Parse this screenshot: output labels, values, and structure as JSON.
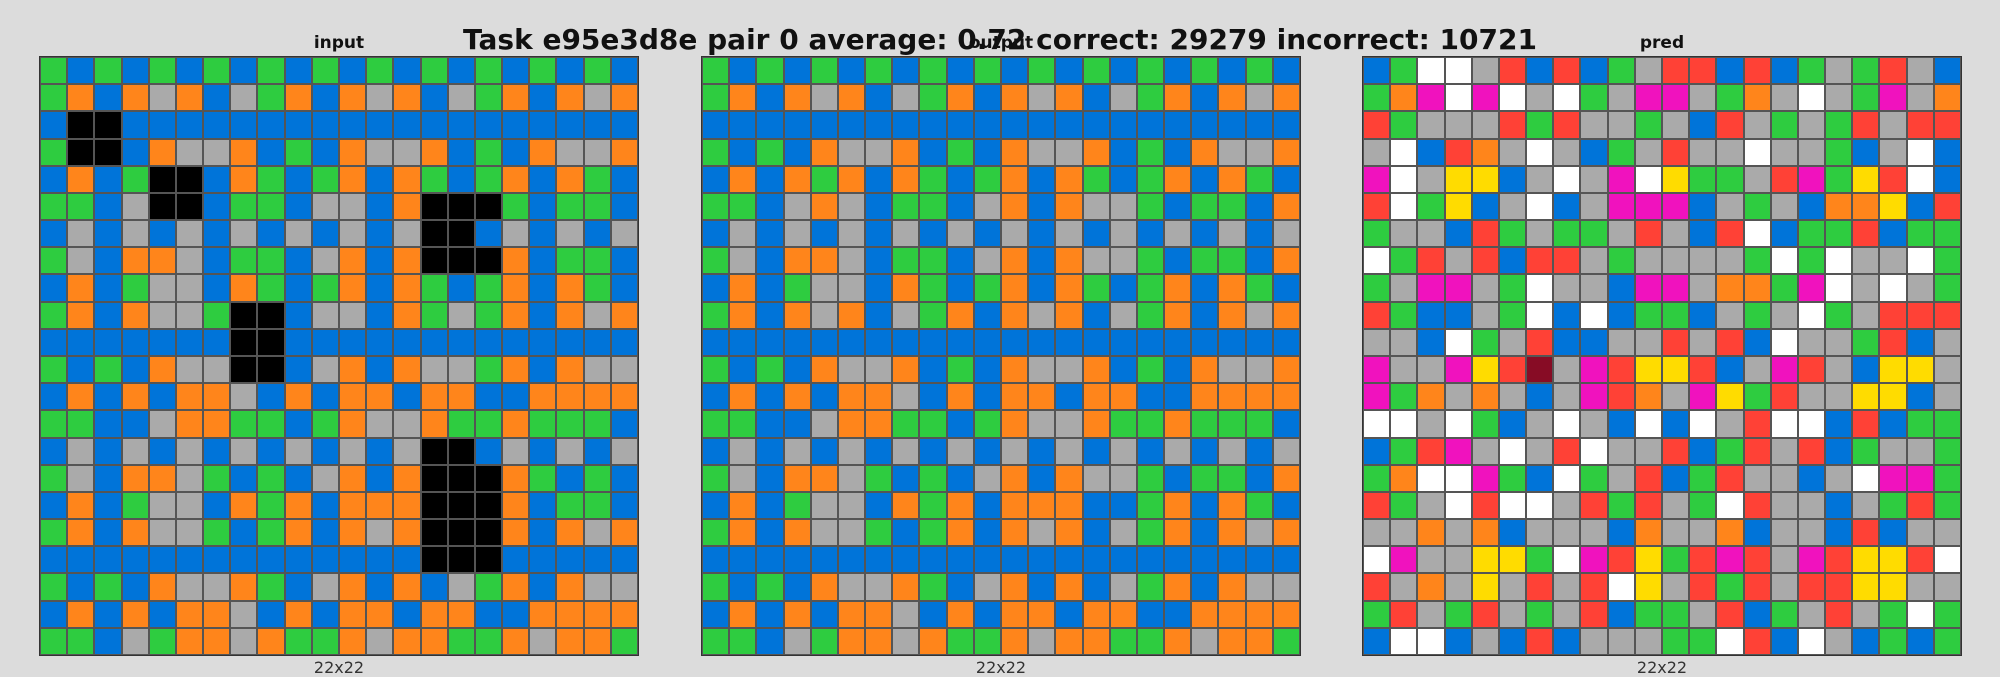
{
  "title": "Task e95e3d8e pair 0 average: 0.72 correct: 29279 incorrect: 10721",
  "palette": {
    "0": "#000000",
    "1": "#0074D9",
    "2": "#FF4136",
    "3": "#2ECC40",
    "4": "#FFDC00",
    "5": "#AAAAAA",
    "6": "#F012BE",
    "7": "#FF851B",
    "8": "#FFFFFF",
    "9": "#870C25"
  },
  "panels": [
    {
      "label": "input",
      "size_label": "22x22",
      "rows": [
        "3131313131313131313131",
        "3717571537175715371757",
        "1001111111111111111111",
        "3001755713175571317557",
        "1713001731371731371731",
        "3315001331551700031331",
        "1515151515151500151515",
        "3517751331571700071331",
        "1713551731371731371731",
        "3717553001551735371757",
        "1111111001111111111111",
        "3131755001571755371755",
        "1717177517177177117777",
        "3311577331375573373331",
        "1515151515151500151515",
        "3517753131571700073131",
        "1713551737177700071331",
        "3717553137175700071757",
        "1111111111111100011111",
        "3131755731571715371755",
        "1717177517177177117777",
        "3315377573375773375773"
      ]
    },
    {
      "label": "output",
      "size_label": "22x22",
      "rows": [
        "3131313131313131313131",
        "3717571537175715371757",
        "1111111111111111111111",
        "3131755713175571317557",
        "1717371731371731371731",
        "3315751331571755313317",
        "1515151515151515151515",
        "3517751331571755313317",
        "1713551731371731371731",
        "3717571537175715371757",
        "1111111111111111111111",
        "3131755713175571317557",
        "1717177517177177117777",
        "3311577331375573373331",
        "1515151515151515151515",
        "3517753131571755313317",
        "1713551737177711371731",
        "3717553137175715371757",
        "1111111111111111111111",
        "3131755731571715371755",
        "1717177517177177117777",
        "3315377573375773375773"
      ]
    },
    {
      "label": "pred",
      "size_label": "22x22",
      "rows": [
        "1388521213522121353251",
        "3768685835665375853657",
        "2355523255351253532522",
        "5812758513525585531581",
        "6854415856843352634281",
        "2834158156661535177412",
        "3551235335251281332133",
        "8325212253555538385583",
        "3566538551665773685853",
        "2311538181331535835222",
        "5518352115525218553215",
        "6556429562442156251445",
        "6375751562756432554415",
        "8858315851818528812133",
        "1326585285521325213553",
        "3788631835213255158663",
        "2358288523253825515323",
        "5575715551755715512155",
        "8655443862432625624428",
        "2575452528452325224455",
        "3253253521335213525383",
        "1881512155533821851313"
      ]
    }
  ]
}
